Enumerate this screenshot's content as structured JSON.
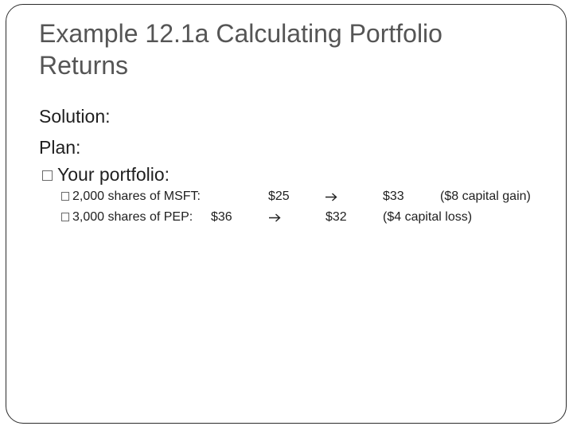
{
  "slide": {
    "title_line1": "Example 12.1a Calculating Portfolio",
    "title_line2": "Returns",
    "solution_label": "Solution:",
    "plan_label": "Plan:",
    "portfolio_label": "Your portfolio:",
    "holdings": [
      {
        "label": "2,000 shares of MSFT:",
        "start_price": "$25",
        "end_price": "$33",
        "note": "($8 capital gain)"
      },
      {
        "label": "3,000 shares of PEP:",
        "start_price": "$36",
        "end_price": "$32",
        "note": "($4 capital loss)"
      }
    ]
  }
}
